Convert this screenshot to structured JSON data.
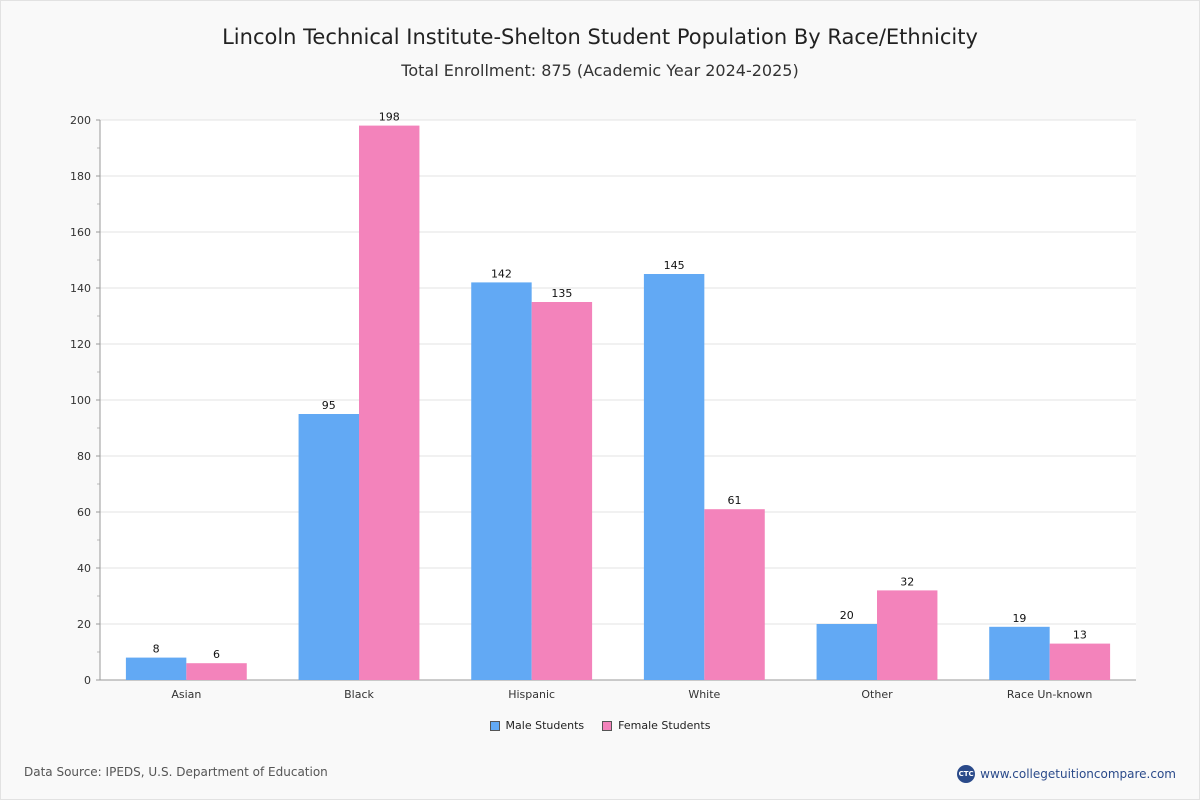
{
  "chart_data": {
    "type": "bar",
    "title": "Lincoln Technical Institute-Shelton Student Population By Race/Ethnicity",
    "subtitle": "Total Enrollment: 875 (Academic Year 2024-2025)",
    "categories": [
      "Asian",
      "Black",
      "Hispanic",
      "White",
      "Other",
      "Race Un-known"
    ],
    "series": [
      {
        "name": "Male Students",
        "color": "#62a9f4",
        "values": [
          8,
          95,
          142,
          145,
          20,
          19
        ]
      },
      {
        "name": "Female Students",
        "color": "#f383bb",
        "values": [
          6,
          198,
          135,
          61,
          32,
          13
        ]
      }
    ],
    "ylim": [
      0,
      200
    ],
    "yticks": [
      0,
      20,
      40,
      60,
      80,
      100,
      120,
      140,
      160,
      180,
      200
    ],
    "xlabel": "",
    "ylabel": "",
    "grid": true,
    "legend": "bottom-center"
  },
  "footer": {
    "source": "Data Source: IPEDS, U.S. Department of Education",
    "brand_logo": "CTC",
    "brand": "www.collegetuitioncompare.com"
  }
}
